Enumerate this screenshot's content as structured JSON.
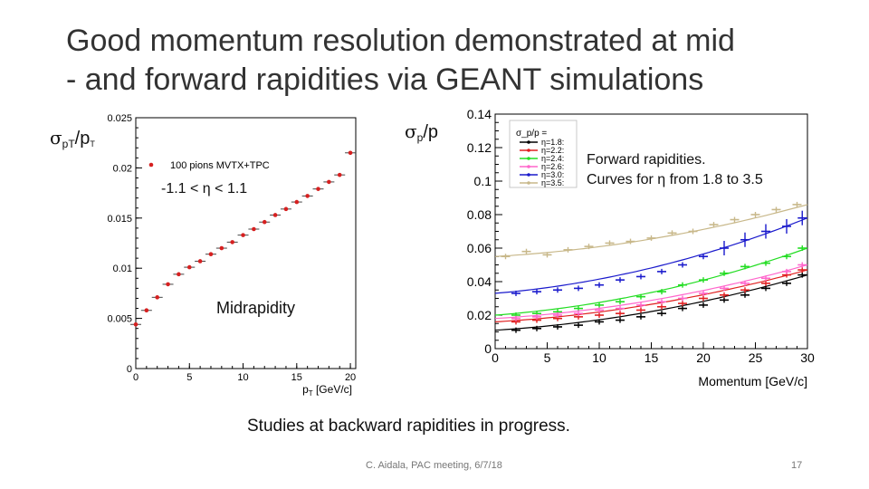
{
  "slide": {
    "title_line1": "Good momentum resolution demonstrated at mid",
    "title_line2": "- and forward rapidities via GEANT simulations",
    "left_label_sym": "σ",
    "left_label_sub": "pT",
    "left_label_mid": "/p",
    "left_label_sub2": "T",
    "right_label_sym": "σ",
    "right_label_sub": "p",
    "right_label_mid": "/p",
    "mid_range": "-1.1 < η < 1.1",
    "midrapidity": "Midrapidity",
    "forward_line1": "Forward rapidities.",
    "forward_line2": "Curves for η from 1.8 to 3.5",
    "backward_note": "Studies at backward rapidities in progress.",
    "footer_author": "C. Aidala, PAC meeting, 6/7/18",
    "page_number": "17"
  },
  "chart_data": [
    {
      "type": "scatter",
      "legend": [
        "100 pions MVTX+TPC"
      ],
      "xlabel": "p_T [GeV/c]",
      "ylabel": "",
      "xlim": [
        0,
        20.5
      ],
      "ylim": [
        0,
        0.025
      ],
      "xticks": [
        "0",
        "5",
        "10",
        "15",
        "20"
      ],
      "yticks": [
        "0",
        "0.005",
        "0.01",
        "0.015",
        "0.02",
        "0.025"
      ],
      "marker_color": "#d62020",
      "series": [
        {
          "name": "100 pions MVTX+TPC",
          "x": [
            0,
            1,
            2,
            3,
            4,
            5,
            6,
            7,
            8,
            9,
            10,
            11,
            12,
            13,
            14,
            15,
            16,
            17,
            18,
            19,
            20
          ],
          "y": [
            0.0044,
            0.0058,
            0.0071,
            0.0084,
            0.0094,
            0.0101,
            0.0107,
            0.0114,
            0.012,
            0.0126,
            0.0133,
            0.0139,
            0.0146,
            0.0153,
            0.0159,
            0.0166,
            0.0172,
            0.0179,
            0.0186,
            0.0193,
            0.0215
          ]
        }
      ]
    },
    {
      "type": "scatter",
      "legend_title": "σ_p/p =",
      "xlabel": "Momentum [GeV/c]",
      "ylabel": "",
      "xlim": [
        0,
        30
      ],
      "ylim": [
        0,
        0.14
      ],
      "xticks": [
        "0",
        "5",
        "10",
        "15",
        "20",
        "25",
        "30"
      ],
      "yticks": [
        "0",
        "0.02",
        "0.04",
        "0.06",
        "0.08",
        "0.1",
        "0.12",
        "0.14"
      ],
      "series": [
        {
          "name": "η=1.8:",
          "color": "#000000",
          "x": [
            2,
            4,
            6,
            8,
            10,
            12,
            14,
            16,
            18,
            20,
            22,
            24,
            26,
            28,
            29.5
          ],
          "y": [
            0.011,
            0.012,
            0.013,
            0.014,
            0.016,
            0.017,
            0.019,
            0.021,
            0.024,
            0.026,
            0.029,
            0.032,
            0.036,
            0.039,
            0.044
          ]
        },
        {
          "name": "η=2.2:",
          "color": "#e02020",
          "x": [
            2,
            4,
            6,
            8,
            10,
            12,
            14,
            16,
            18,
            20,
            22,
            24,
            26,
            28,
            29.5
          ],
          "y": [
            0.016,
            0.017,
            0.018,
            0.019,
            0.02,
            0.021,
            0.023,
            0.025,
            0.027,
            0.03,
            0.032,
            0.035,
            0.039,
            0.044,
            0.047
          ]
        },
        {
          "name": "η=2.4:",
          "color": "#22dd22",
          "x": [
            2,
            4,
            6,
            8,
            10,
            12,
            14,
            16,
            18,
            20,
            22,
            24,
            26,
            28,
            29.5
          ],
          "y": [
            0.02,
            0.021,
            0.022,
            0.024,
            0.026,
            0.028,
            0.031,
            0.034,
            0.038,
            0.041,
            0.045,
            0.049,
            0.051,
            0.055,
            0.06
          ]
        },
        {
          "name": "η=2.6:",
          "color": "#ff66cc",
          "x": [
            2,
            4,
            6,
            8,
            10,
            12,
            14,
            16,
            18,
            20,
            22,
            24,
            26,
            28,
            29.5
          ],
          "y": [
            0.018,
            0.019,
            0.02,
            0.021,
            0.023,
            0.024,
            0.026,
            0.028,
            0.03,
            0.033,
            0.036,
            0.039,
            0.042,
            0.046,
            0.05
          ]
        },
        {
          "name": "η=3.0:",
          "color": "#1a1acc",
          "x": [
            2,
            4,
            6,
            8,
            10,
            12,
            14,
            16,
            18,
            20,
            22,
            24,
            26,
            28,
            29.5
          ],
          "y": [
            0.033,
            0.034,
            0.035,
            0.036,
            0.038,
            0.041,
            0.043,
            0.046,
            0.05,
            0.055,
            0.06,
            0.065,
            0.07,
            0.073,
            0.078
          ]
        },
        {
          "name": "η=3.5:",
          "color": "#c8b88a",
          "x": [
            1,
            3,
            5,
            7,
            9,
            11,
            13,
            15,
            17,
            19,
            21,
            23,
            25,
            27,
            29
          ],
          "y": [
            0.055,
            0.058,
            0.056,
            0.059,
            0.061,
            0.063,
            0.064,
            0.066,
            0.069,
            0.07,
            0.074,
            0.077,
            0.08,
            0.083,
            0.086
          ]
        }
      ]
    }
  ]
}
